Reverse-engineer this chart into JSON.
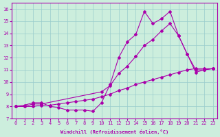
{
  "xlabel": "Windchill (Refroidissement éolien,°C)",
  "bg_color": "#cceedd",
  "line_color": "#aa00aa",
  "grid_color": "#99cccc",
  "xlim": [
    -0.5,
    23.5
  ],
  "ylim": [
    7,
    16.5
  ],
  "xticks": [
    0,
    1,
    2,
    3,
    4,
    5,
    6,
    7,
    8,
    9,
    10,
    11,
    12,
    13,
    14,
    15,
    16,
    17,
    18,
    19,
    20,
    21,
    22,
    23
  ],
  "yticks": [
    7,
    8,
    9,
    10,
    11,
    12,
    13,
    14,
    15,
    16
  ],
  "line1_x": [
    0,
    1,
    2,
    3,
    4,
    5,
    6,
    7,
    8,
    9,
    10,
    11,
    12,
    13,
    14,
    15,
    16,
    17,
    18,
    19,
    20,
    21,
    22,
    23
  ],
  "line1_y": [
    8.0,
    8.1,
    8.3,
    8.3,
    8.0,
    7.9,
    7.7,
    7.7,
    7.7,
    7.6,
    8.3,
    9.8,
    12.0,
    13.3,
    13.9,
    15.8,
    14.8,
    15.2,
    15.8,
    13.8,
    12.3,
    10.8,
    11.0,
    11.1
  ],
  "line2_x": [
    0,
    1,
    2,
    3,
    10,
    11,
    12,
    13,
    14,
    15,
    16,
    17,
    18,
    19,
    20,
    21,
    22,
    23
  ],
  "line2_y": [
    8.0,
    8.0,
    8.2,
    8.2,
    9.2,
    9.7,
    10.7,
    11.3,
    12.1,
    13.0,
    13.5,
    14.2,
    14.8,
    13.8,
    12.3,
    11.0,
    11.0,
    11.1
  ],
  "line3_x": [
    0,
    1,
    2,
    3,
    4,
    5,
    6,
    7,
    8,
    9,
    10,
    11,
    12,
    13,
    14,
    15,
    16,
    17,
    18,
    19,
    20,
    21,
    22,
    23
  ],
  "line3_y": [
    8.0,
    8.0,
    8.0,
    8.1,
    8.1,
    8.2,
    8.3,
    8.4,
    8.5,
    8.6,
    8.8,
    9.0,
    9.3,
    9.5,
    9.8,
    10.0,
    10.2,
    10.4,
    10.6,
    10.8,
    11.0,
    11.1,
    11.1,
    11.1
  ]
}
